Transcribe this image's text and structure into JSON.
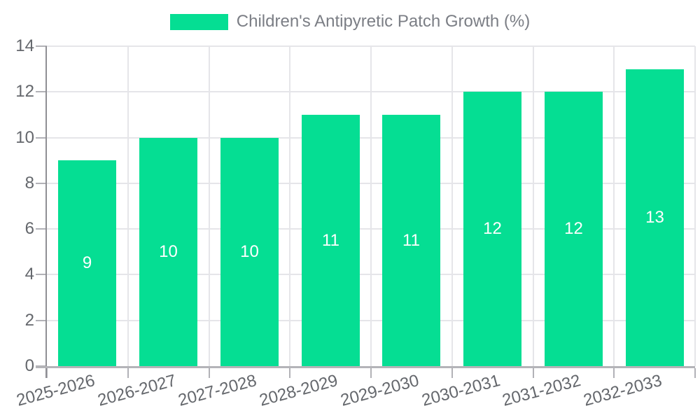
{
  "legend": {
    "items": [
      {
        "label": "Children's Antipyretic Patch Growth (%)",
        "swatch_color": "#05DE93"
      }
    ],
    "position": "top-center"
  },
  "chart_data": {
    "type": "bar",
    "title": "Children's Antipyretic Patch Growth (%)",
    "categories": [
      "2025-2026",
      "2026-2027",
      "2027-2028",
      "2028-2029",
      "2029-2030",
      "2030-2031",
      "2031-2032",
      "2032-2033"
    ],
    "values": [
      9,
      10,
      10,
      11,
      11,
      12,
      12,
      13
    ],
    "series_name": "Children's Antipyretic Patch Growth (%)",
    "value_labels_position": "inside",
    "xlabel": "",
    "ylabel": "",
    "ylim": [
      0,
      14
    ],
    "ytick_step": 2,
    "yticks": [
      0,
      2,
      4,
      6,
      8,
      10,
      12,
      14
    ],
    "grid": true,
    "x_label_rotation_deg": -15,
    "legend_position": "top-center",
    "colors": {
      "bar": "#05DE93",
      "value_label": "#ffffff",
      "grid_line": "#e5e5e9",
      "y_axis_line": "#8f8f94",
      "x_axis_line": "#b4b4b8",
      "tick_mark": "#b2b2b7",
      "axis_label": "#64676c",
      "legend_text": "#7b7e85"
    }
  }
}
